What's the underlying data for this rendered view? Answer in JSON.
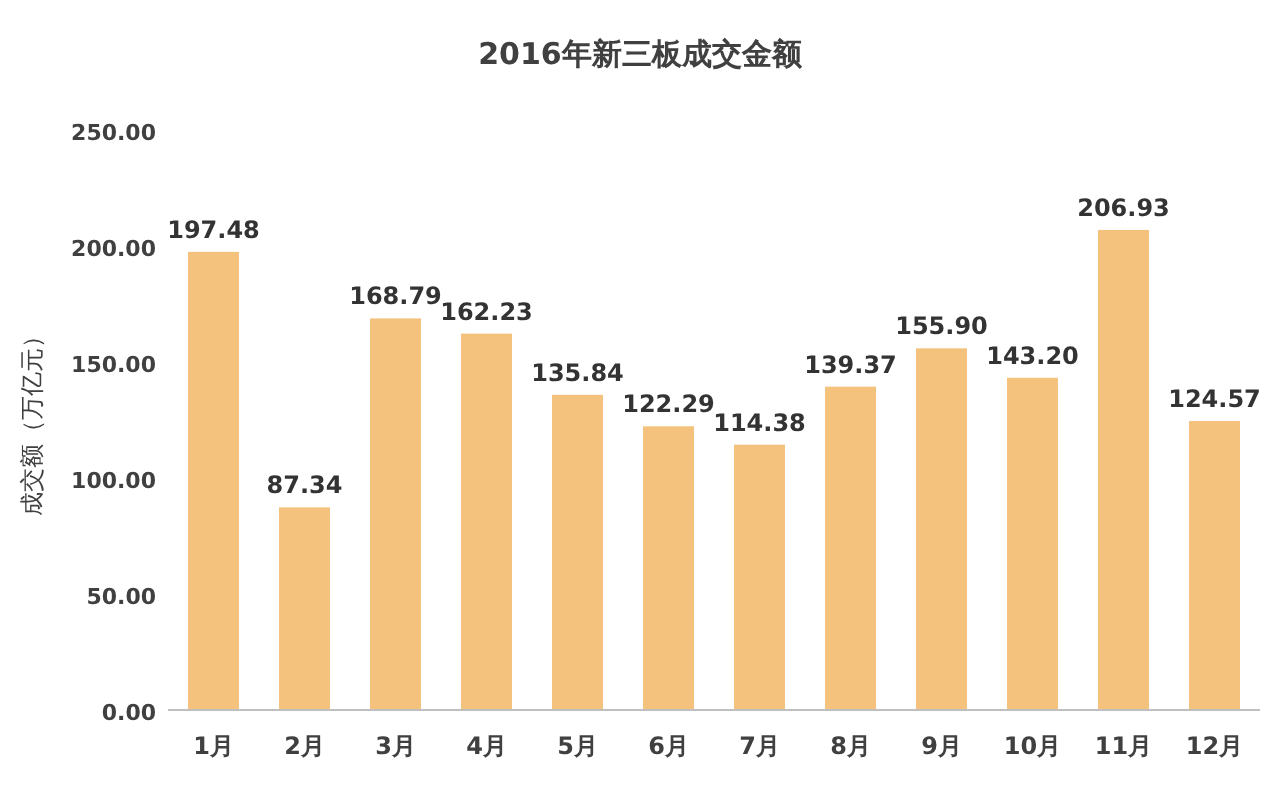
{
  "chart_data": {
    "type": "bar",
    "title": "2016年新三板成交金额",
    "ylabel": "成交额（万亿元）",
    "categories": [
      "1月",
      "2月",
      "3月",
      "4月",
      "5月",
      "6月",
      "7月",
      "8月",
      "9月",
      "10月",
      "11月",
      "12月"
    ],
    "values": [
      197.48,
      87.34,
      168.79,
      162.23,
      135.84,
      122.29,
      114.38,
      139.37,
      155.9,
      143.2,
      206.93,
      124.57
    ],
    "value_labels": [
      "197.48",
      "87.34",
      "168.79",
      "162.23",
      "135.84",
      "122.29",
      "114.38",
      "139.37",
      "155.90",
      "143.20",
      "206.93",
      "124.57"
    ],
    "color": "#f5c27e",
    "ylim": [
      0,
      250
    ],
    "yticks": [
      {
        "value": 0,
        "label": "0.00"
      },
      {
        "value": 50,
        "label": "50.00"
      },
      {
        "value": 100,
        "label": "100.00"
      },
      {
        "value": 150,
        "label": "150.00"
      },
      {
        "value": 200,
        "label": "200.00"
      },
      {
        "value": 250,
        "label": "250.00"
      }
    ],
    "grid": false
  }
}
